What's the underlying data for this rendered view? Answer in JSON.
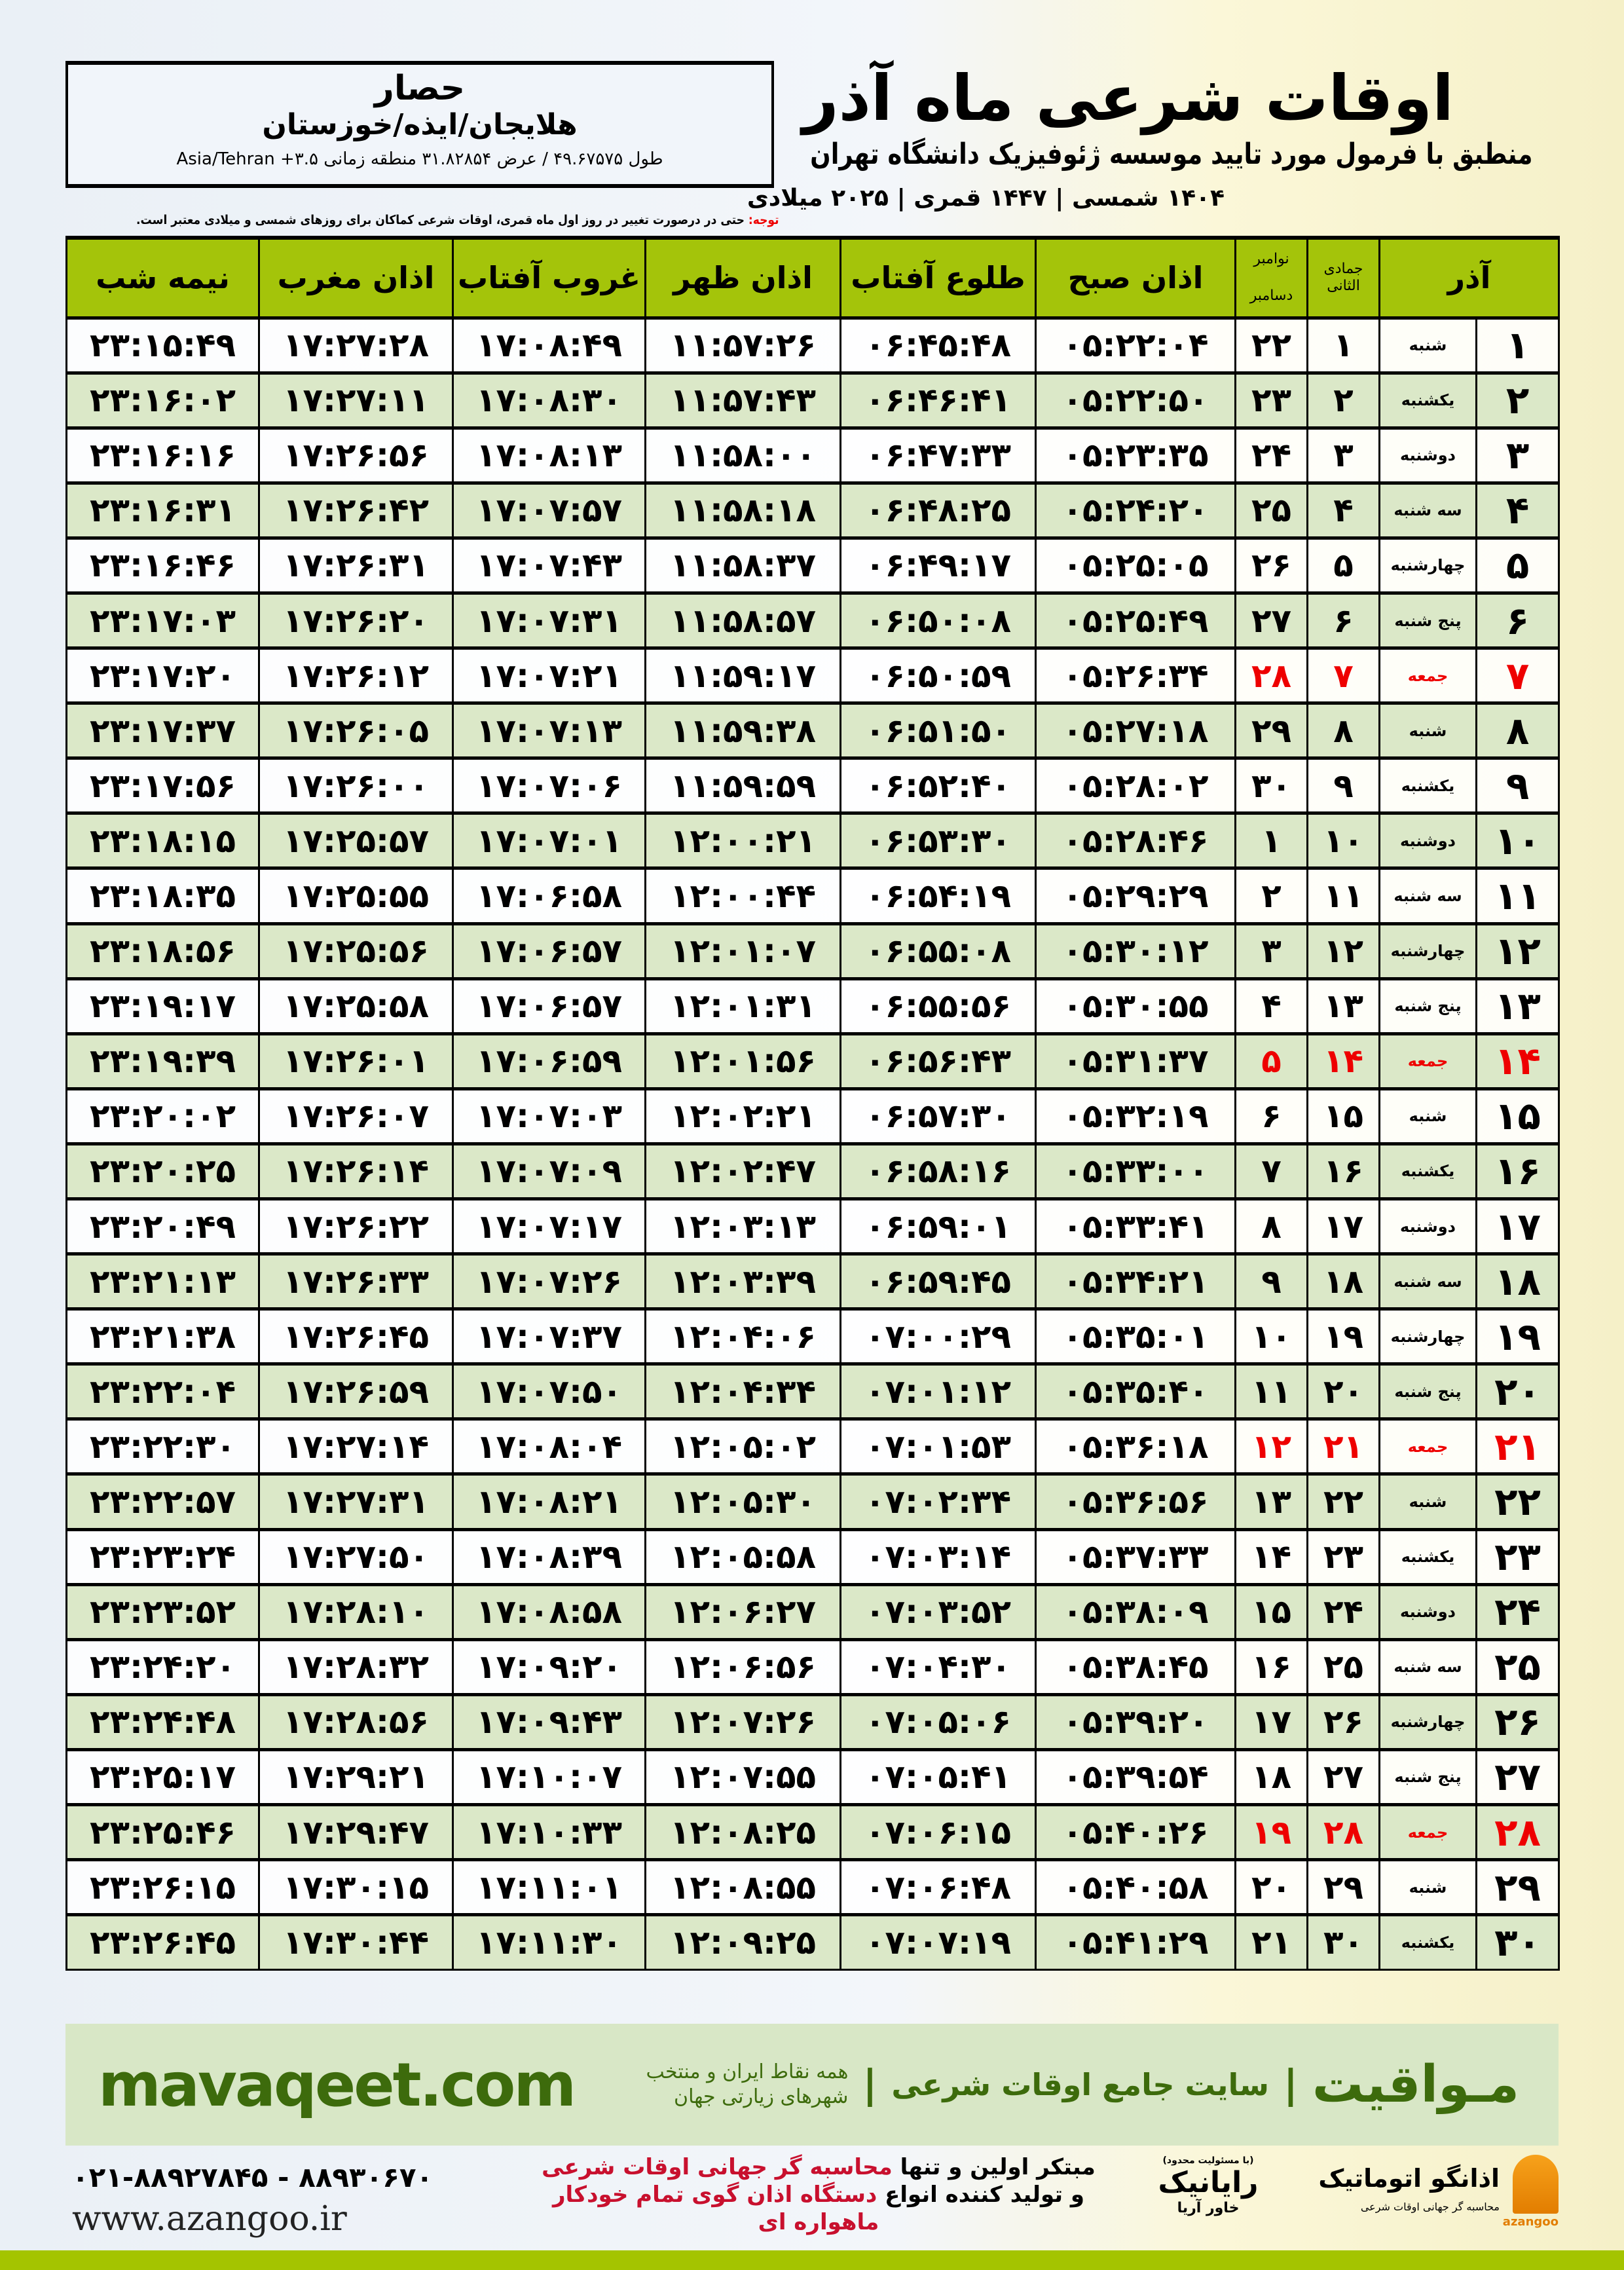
{
  "location": {
    "city": "حصار",
    "path": "هلایجان/ایذه/خوزستان",
    "geo": "طول ۴۹.۶۷۵۷۵ / عرض ۳۱.۸۲۸۵۴ منطقه زمانی ۳.۵+ Asia/Tehran"
  },
  "header": {
    "title": "اوقات شرعی ماه آذر",
    "subtitle": "منطبق با فرمول مورد تایید موسسه ژئوفیزیک دانشگاه تهران",
    "dates": "۱۴۰۴ شمسی | ۱۴۴۷ قمری | ۲۰۲۵ میلادی"
  },
  "note": {
    "label": "توجه:",
    "text": " حتی در درصورت تغییر در روز اول ماه قمری، اوقات شرعی کماکان برای روزهای شمسی و میلادی معتبر است."
  },
  "table": {
    "columns": {
      "azar": "آذر",
      "hijri": "جمادی الثانی",
      "greg_top": "نوامبر",
      "greg_bottom": "دسامبر",
      "fajr": "اذان صبح",
      "sunrise": "طلوع آفتاب",
      "dhuhr": "اذان ظهر",
      "sunset": "غروب آفتاب",
      "maghrib": "اذان مغرب",
      "midnight": "نیمه شب"
    },
    "rows": [
      [
        "۱",
        "شنبه",
        "۱",
        "۲۲",
        "۰۵:۲۲:۰۴",
        "۰۶:۴۵:۴۸",
        "۱۱:۵۷:۲۶",
        "۱۷:۰۸:۴۹",
        "۱۷:۲۷:۲۸",
        "۲۳:۱۵:۴۹",
        false
      ],
      [
        "۲",
        "یکشنبه",
        "۲",
        "۲۳",
        "۰۵:۲۲:۵۰",
        "۰۶:۴۶:۴۱",
        "۱۱:۵۷:۴۳",
        "۱۷:۰۸:۳۰",
        "۱۷:۲۷:۱۱",
        "۲۳:۱۶:۰۲",
        false
      ],
      [
        "۳",
        "دوشنبه",
        "۳",
        "۲۴",
        "۰۵:۲۳:۳۵",
        "۰۶:۴۷:۳۳",
        "۱۱:۵۸:۰۰",
        "۱۷:۰۸:۱۳",
        "۱۷:۲۶:۵۶",
        "۲۳:۱۶:۱۶",
        false
      ],
      [
        "۴",
        "سه شنبه",
        "۴",
        "۲۵",
        "۰۵:۲۴:۲۰",
        "۰۶:۴۸:۲۵",
        "۱۱:۵۸:۱۸",
        "۱۷:۰۷:۵۷",
        "۱۷:۲۶:۴۲",
        "۲۳:۱۶:۳۱",
        false
      ],
      [
        "۵",
        "چهارشنبه",
        "۵",
        "۲۶",
        "۰۵:۲۵:۰۵",
        "۰۶:۴۹:۱۷",
        "۱۱:۵۸:۳۷",
        "۱۷:۰۷:۴۳",
        "۱۷:۲۶:۳۱",
        "۲۳:۱۶:۴۶",
        false
      ],
      [
        "۶",
        "پنج شنبه",
        "۶",
        "۲۷",
        "۰۵:۲۵:۴۹",
        "۰۶:۵۰:۰۸",
        "۱۱:۵۸:۵۷",
        "۱۷:۰۷:۳۱",
        "۱۷:۲۶:۲۰",
        "۲۳:۱۷:۰۳",
        false
      ],
      [
        "۷",
        "جمعه",
        "۷",
        "۲۸",
        "۰۵:۲۶:۳۴",
        "۰۶:۵۰:۵۹",
        "۱۱:۵۹:۱۷",
        "۱۷:۰۷:۲۱",
        "۱۷:۲۶:۱۲",
        "۲۳:۱۷:۲۰",
        true
      ],
      [
        "۸",
        "شنبه",
        "۸",
        "۲۹",
        "۰۵:۲۷:۱۸",
        "۰۶:۵۱:۵۰",
        "۱۱:۵۹:۳۸",
        "۱۷:۰۷:۱۳",
        "۱۷:۲۶:۰۵",
        "۲۳:۱۷:۳۷",
        false
      ],
      [
        "۹",
        "یکشنبه",
        "۹",
        "۳۰",
        "۰۵:۲۸:۰۲",
        "۰۶:۵۲:۴۰",
        "۱۱:۵۹:۵۹",
        "۱۷:۰۷:۰۶",
        "۱۷:۲۶:۰۰",
        "۲۳:۱۷:۵۶",
        false
      ],
      [
        "۱۰",
        "دوشنبه",
        "۱۰",
        "۱",
        "۰۵:۲۸:۴۶",
        "۰۶:۵۳:۳۰",
        "۱۲:۰۰:۲۱",
        "۱۷:۰۷:۰۱",
        "۱۷:۲۵:۵۷",
        "۲۳:۱۸:۱۵",
        false
      ],
      [
        "۱۱",
        "سه شنبه",
        "۱۱",
        "۲",
        "۰۵:۲۹:۲۹",
        "۰۶:۵۴:۱۹",
        "۱۲:۰۰:۴۴",
        "۱۷:۰۶:۵۸",
        "۱۷:۲۵:۵۵",
        "۲۳:۱۸:۳۵",
        false
      ],
      [
        "۱۲",
        "چهارشنبه",
        "۱۲",
        "۳",
        "۰۵:۳۰:۱۲",
        "۰۶:۵۵:۰۸",
        "۱۲:۰۱:۰۷",
        "۱۷:۰۶:۵۷",
        "۱۷:۲۵:۵۶",
        "۲۳:۱۸:۵۶",
        false
      ],
      [
        "۱۳",
        "پنج شنبه",
        "۱۳",
        "۴",
        "۰۵:۳۰:۵۵",
        "۰۶:۵۵:۵۶",
        "۱۲:۰۱:۳۱",
        "۱۷:۰۶:۵۷",
        "۱۷:۲۵:۵۸",
        "۲۳:۱۹:۱۷",
        false
      ],
      [
        "۱۴",
        "جمعه",
        "۱۴",
        "۵",
        "۰۵:۳۱:۳۷",
        "۰۶:۵۶:۴۳",
        "۱۲:۰۱:۵۶",
        "۱۷:۰۶:۵۹",
        "۱۷:۲۶:۰۱",
        "۲۳:۱۹:۳۹",
        true
      ],
      [
        "۱۵",
        "شنبه",
        "۱۵",
        "۶",
        "۰۵:۳۲:۱۹",
        "۰۶:۵۷:۳۰",
        "۱۲:۰۲:۲۱",
        "۱۷:۰۷:۰۳",
        "۱۷:۲۶:۰۷",
        "۲۳:۲۰:۰۲",
        false
      ],
      [
        "۱۶",
        "یکشنبه",
        "۱۶",
        "۷",
        "۰۵:۳۳:۰۰",
        "۰۶:۵۸:۱۶",
        "۱۲:۰۲:۴۷",
        "۱۷:۰۷:۰۹",
        "۱۷:۲۶:۱۴",
        "۲۳:۲۰:۲۵",
        false
      ],
      [
        "۱۷",
        "دوشنبه",
        "۱۷",
        "۸",
        "۰۵:۳۳:۴۱",
        "۰۶:۵۹:۰۱",
        "۱۲:۰۳:۱۳",
        "۱۷:۰۷:۱۷",
        "۱۷:۲۶:۲۲",
        "۲۳:۲۰:۴۹",
        false
      ],
      [
        "۱۸",
        "سه شنبه",
        "۱۸",
        "۹",
        "۰۵:۳۴:۲۱",
        "۰۶:۵۹:۴۵",
        "۱۲:۰۳:۳۹",
        "۱۷:۰۷:۲۶",
        "۱۷:۲۶:۳۳",
        "۲۳:۲۱:۱۳",
        false
      ],
      [
        "۱۹",
        "چهارشنبه",
        "۱۹",
        "۱۰",
        "۰۵:۳۵:۰۱",
        "۰۷:۰۰:۲۹",
        "۱۲:۰۴:۰۶",
        "۱۷:۰۷:۳۷",
        "۱۷:۲۶:۴۵",
        "۲۳:۲۱:۳۸",
        false
      ],
      [
        "۲۰",
        "پنج شنبه",
        "۲۰",
        "۱۱",
        "۰۵:۳۵:۴۰",
        "۰۷:۰۱:۱۲",
        "۱۲:۰۴:۳۴",
        "۱۷:۰۷:۵۰",
        "۱۷:۲۶:۵۹",
        "۲۳:۲۲:۰۴",
        false
      ],
      [
        "۲۱",
        "جمعه",
        "۲۱",
        "۱۲",
        "۰۵:۳۶:۱۸",
        "۰۷:۰۱:۵۳",
        "۱۲:۰۵:۰۲",
        "۱۷:۰۸:۰۴",
        "۱۷:۲۷:۱۴",
        "۲۳:۲۲:۳۰",
        true
      ],
      [
        "۲۲",
        "شنبه",
        "۲۲",
        "۱۳",
        "۰۵:۳۶:۵۶",
        "۰۷:۰۲:۳۴",
        "۱۲:۰۵:۳۰",
        "۱۷:۰۸:۲۱",
        "۱۷:۲۷:۳۱",
        "۲۳:۲۲:۵۷",
        false
      ],
      [
        "۲۳",
        "یکشنبه",
        "۲۳",
        "۱۴",
        "۰۵:۳۷:۳۳",
        "۰۷:۰۳:۱۴",
        "۱۲:۰۵:۵۸",
        "۱۷:۰۸:۳۹",
        "۱۷:۲۷:۵۰",
        "۲۳:۲۳:۲۴",
        false
      ],
      [
        "۲۴",
        "دوشنبه",
        "۲۴",
        "۱۵",
        "۰۵:۳۸:۰۹",
        "۰۷:۰۳:۵۲",
        "۱۲:۰۶:۲۷",
        "۱۷:۰۸:۵۸",
        "۱۷:۲۸:۱۰",
        "۲۳:۲۳:۵۲",
        false
      ],
      [
        "۲۵",
        "سه شنبه",
        "۲۵",
        "۱۶",
        "۰۵:۳۸:۴۵",
        "۰۷:۰۴:۳۰",
        "۱۲:۰۶:۵۶",
        "۱۷:۰۹:۲۰",
        "۱۷:۲۸:۳۲",
        "۲۳:۲۴:۲۰",
        false
      ],
      [
        "۲۶",
        "چهارشنبه",
        "۲۶",
        "۱۷",
        "۰۵:۳۹:۲۰",
        "۰۷:۰۵:۰۶",
        "۱۲:۰۷:۲۶",
        "۱۷:۰۹:۴۳",
        "۱۷:۲۸:۵۶",
        "۲۳:۲۴:۴۸",
        false
      ],
      [
        "۲۷",
        "پنج شنبه",
        "۲۷",
        "۱۸",
        "۰۵:۳۹:۵۴",
        "۰۷:۰۵:۴۱",
        "۱۲:۰۷:۵۵",
        "۱۷:۱۰:۰۷",
        "۱۷:۲۹:۲۱",
        "۲۳:۲۵:۱۷",
        false
      ],
      [
        "۲۸",
        "جمعه",
        "۲۸",
        "۱۹",
        "۰۵:۴۰:۲۶",
        "۰۷:۰۶:۱۵",
        "۱۲:۰۸:۲۵",
        "۱۷:۱۰:۳۳",
        "۱۷:۲۹:۴۷",
        "۲۳:۲۵:۴۶",
        true
      ],
      [
        "۲۹",
        "شنبه",
        "۲۹",
        "۲۰",
        "۰۵:۴۰:۵۸",
        "۰۷:۰۶:۴۸",
        "۱۲:۰۸:۵۵",
        "۱۷:۱۱:۰۱",
        "۱۷:۳۰:۱۵",
        "۲۳:۲۶:۱۵",
        false
      ],
      [
        "۳۰",
        "یکشنبه",
        "۳۰",
        "۲۱",
        "۰۵:۴۱:۲۹",
        "۰۷:۰۷:۱۹",
        "۱۲:۰۹:۲۵",
        "۱۷:۱۱:۳۰",
        "۱۷:۳۰:۴۴",
        "۲۳:۲۶:۴۵",
        false
      ]
    ]
  },
  "banner": {
    "logo": "مـواقیت",
    "sep": "|",
    "desc": "سایت جامع اوقات شرعی",
    "sub": "همه نقاط ایران و منتخب شهرهای زیارتی جهان",
    "url": "mavaqeet.com"
  },
  "footer": {
    "phone": "۰۲۱-۸۸۹۲۷۸۴۵ - ۸۸۹۳۰۶۷۰",
    "site": "www.azangoo.ir",
    "promo1a": "مبتکر اولین و تنها ",
    "promo1b": "محاسبه گر جهانی اوقات شرعی",
    "promo2a": "و تولید کننده انواع ",
    "promo2b": "دستگاه اذان گوی تمام خودکار ماهواره ای",
    "rayanik": "رایانیک",
    "rayanik_small": "خاور آریا",
    "rayanik_tiny": "(با مسئولیت محدود)",
    "azangoo_name": "اذانگو اتوماتیک",
    "azangoo_sub": "محاسبه گر جهانی اوقات شرعی",
    "azangoo_label": "azangoo"
  },
  "colors": {
    "header_green": "#a4c40a",
    "row_green": "#dbe8c8",
    "friday_red": "#ee0000",
    "banner_green": "#3d6b0c"
  }
}
